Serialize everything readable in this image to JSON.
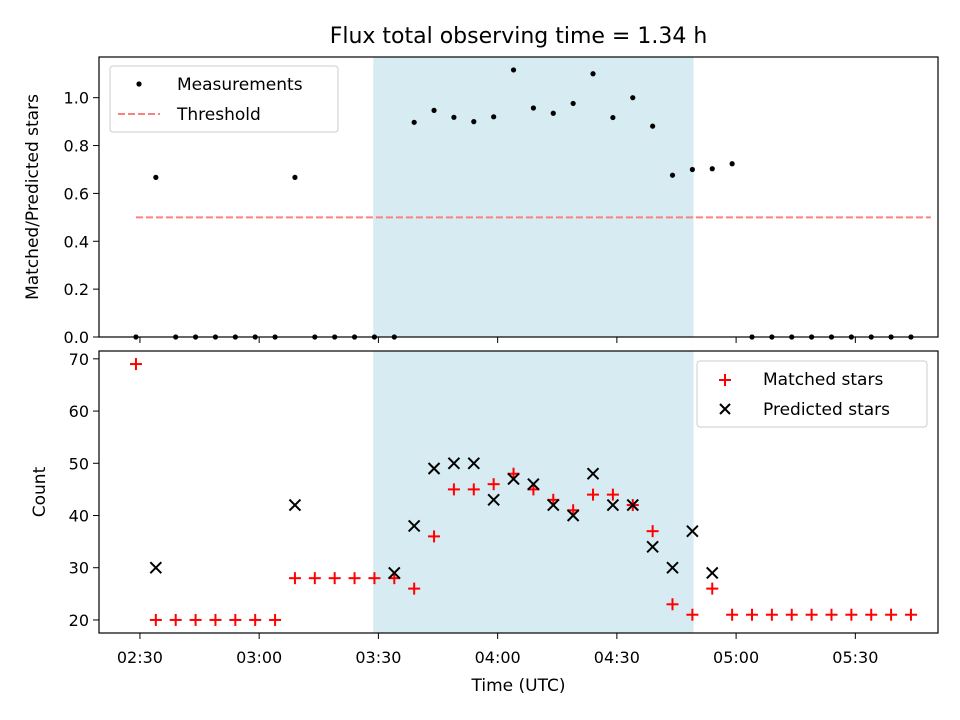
{
  "chart_data": [
    {
      "type": "scatter",
      "title": "Flux total observing time = 1.34 h",
      "xlabel": "",
      "ylabel": "Matched/Predicted stars",
      "ylim": [
        0,
        1.17
      ],
      "yticks": [
        "0.0",
        "0.2",
        "0.4",
        "0.6",
        "0.8",
        "1.0"
      ],
      "xticks": [
        "02:30",
        "03:00",
        "03:30",
        "04:00",
        "04:30",
        "05:00",
        "05:30"
      ],
      "xtick_values_min": [
        150,
        180,
        210,
        240,
        270,
        300,
        330
      ],
      "xlim_min": [
        139.7,
        350.8
      ],
      "highlight_span_min": [
        208.7,
        289.3
      ],
      "highlight_color": "#add8e6",
      "legend_position": "upper left",
      "series": [
        {
          "name": "Measurements",
          "marker": "dot",
          "color": "#000000",
          "x_min": [
            149,
            154,
            159,
            164,
            169,
            174,
            179,
            184,
            189,
            194,
            199,
            204,
            209,
            214,
            219,
            224,
            229,
            234,
            239,
            244,
            249,
            254,
            259,
            264,
            269,
            274,
            279,
            284,
            289,
            294,
            299,
            304,
            309,
            314,
            319,
            324,
            329,
            334,
            339,
            344
          ],
          "y": [
            0,
            0.667,
            0,
            0,
            0,
            0,
            0,
            0,
            0.667,
            0,
            0,
            0,
            0,
            0,
            0.897,
            0.947,
            0.918,
            0.9,
            0.92,
            1.116,
            0.957,
            0.935,
            0.976,
            1.1,
            0.917,
            1.0,
            0.881,
            0.676,
            0.7,
            0.703,
            0.724,
            0,
            0,
            0,
            0,
            0,
            0,
            0,
            0,
            0
          ]
        },
        {
          "name": "Threshold",
          "line": "dashed",
          "color": "#ff7f7f",
          "x_min": [
            149,
            349
          ],
          "y": [
            0.5,
            0.5
          ]
        }
      ]
    },
    {
      "type": "scatter",
      "title": "",
      "xlabel": "Time (UTC)",
      "ylabel": "Count",
      "ylim": [
        17.5,
        71.5
      ],
      "yticks": [
        "20",
        "30",
        "40",
        "50",
        "60",
        "70"
      ],
      "legend_position": "upper right",
      "series": [
        {
          "name": "Matched stars",
          "marker": "plus",
          "color": "#ff0000",
          "x_min": [
            149,
            154,
            159,
            164,
            169,
            174,
            179,
            184,
            189,
            194,
            199,
            204,
            209,
            214,
            219,
            224,
            229,
            234,
            239,
            244,
            249,
            254,
            259,
            264,
            269,
            274,
            279,
            284,
            289,
            294,
            299,
            304,
            309,
            314,
            319,
            324,
            329,
            334,
            339,
            344
          ],
          "y": [
            69,
            20,
            20,
            20,
            20,
            20,
            20,
            20,
            28,
            28,
            28,
            28,
            28,
            28,
            26,
            36,
            45,
            45,
            46,
            48,
            45,
            43,
            41,
            44,
            44,
            42,
            37,
            23,
            21,
            26,
            21,
            21,
            21,
            21,
            21,
            21,
            21,
            21,
            21,
            21
          ]
        },
        {
          "name": "Predicted stars",
          "marker": "x",
          "color": "#000000",
          "x_min": [
            154,
            189,
            214,
            219,
            224,
            229,
            234,
            239,
            244,
            249,
            254,
            259,
            264,
            269,
            274,
            279,
            284,
            289,
            294
          ],
          "y": [
            30,
            42,
            29,
            38,
            49,
            50,
            50,
            43,
            47,
            46,
            42,
            40,
            48,
            42,
            42,
            34,
            30,
            37,
            29
          ]
        }
      ]
    }
  ]
}
